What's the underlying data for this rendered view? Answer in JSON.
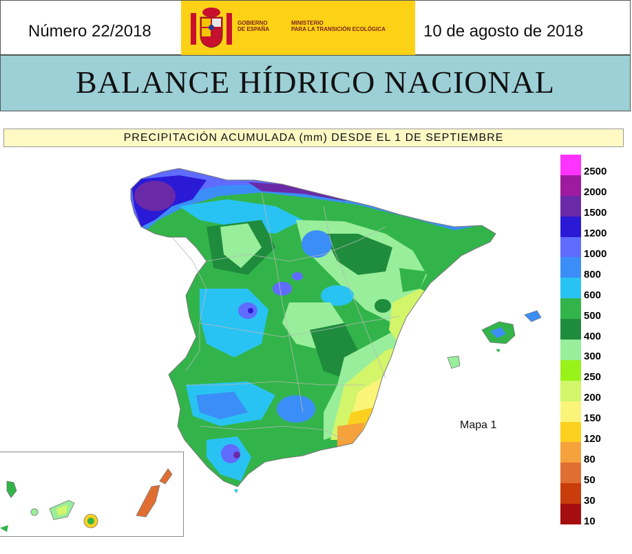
{
  "header": {
    "issue": "Número 22/2018",
    "date": "10 de agosto de 2018",
    "gov_line1": "GOBIERNO",
    "gov_line2": "DE ESPAÑA",
    "ministry_line1": "MINISTERIO",
    "ministry_line2": "PARA LA TRANSICIÓN ECOLÓGICA",
    "logo_color": "#fcd116"
  },
  "title": "BALANCE HÍDRICO NACIONAL",
  "map_title": "PRECIPITACIÓN ACUMULADA (mm) DESDE EL 1 DE SEPTIEMBRE",
  "map_label": "Mapa 1",
  "legend": [
    {
      "label": "2500",
      "color": "#ff33ff"
    },
    {
      "label": "2000",
      "color": "#9e1a9e"
    },
    {
      "label": "1500",
      "color": "#6a2aa8"
    },
    {
      "label": "1200",
      "color": "#2a1ad6"
    },
    {
      "label": "1000",
      "color": "#5f6cff"
    },
    {
      "label": "800",
      "color": "#3b8ef7"
    },
    {
      "label": "600",
      "color": "#29c3f3"
    },
    {
      "label": "500",
      "color": "#32b44a"
    },
    {
      "label": "400",
      "color": "#1e8c3c"
    },
    {
      "label": "300",
      "color": "#98ee9a"
    },
    {
      "label": "250",
      "color": "#99f21a"
    },
    {
      "label": "200",
      "color": "#d2f56a"
    },
    {
      "label": "150",
      "color": "#faf578"
    },
    {
      "label": "120",
      "color": "#fcd01e"
    },
    {
      "label": "80",
      "color": "#f5a23c"
    },
    {
      "label": "50",
      "color": "#e06e32"
    },
    {
      "label": "30",
      "color": "#c93c0c"
    },
    {
      "label": "10",
      "color": "#a50e0e"
    }
  ]
}
